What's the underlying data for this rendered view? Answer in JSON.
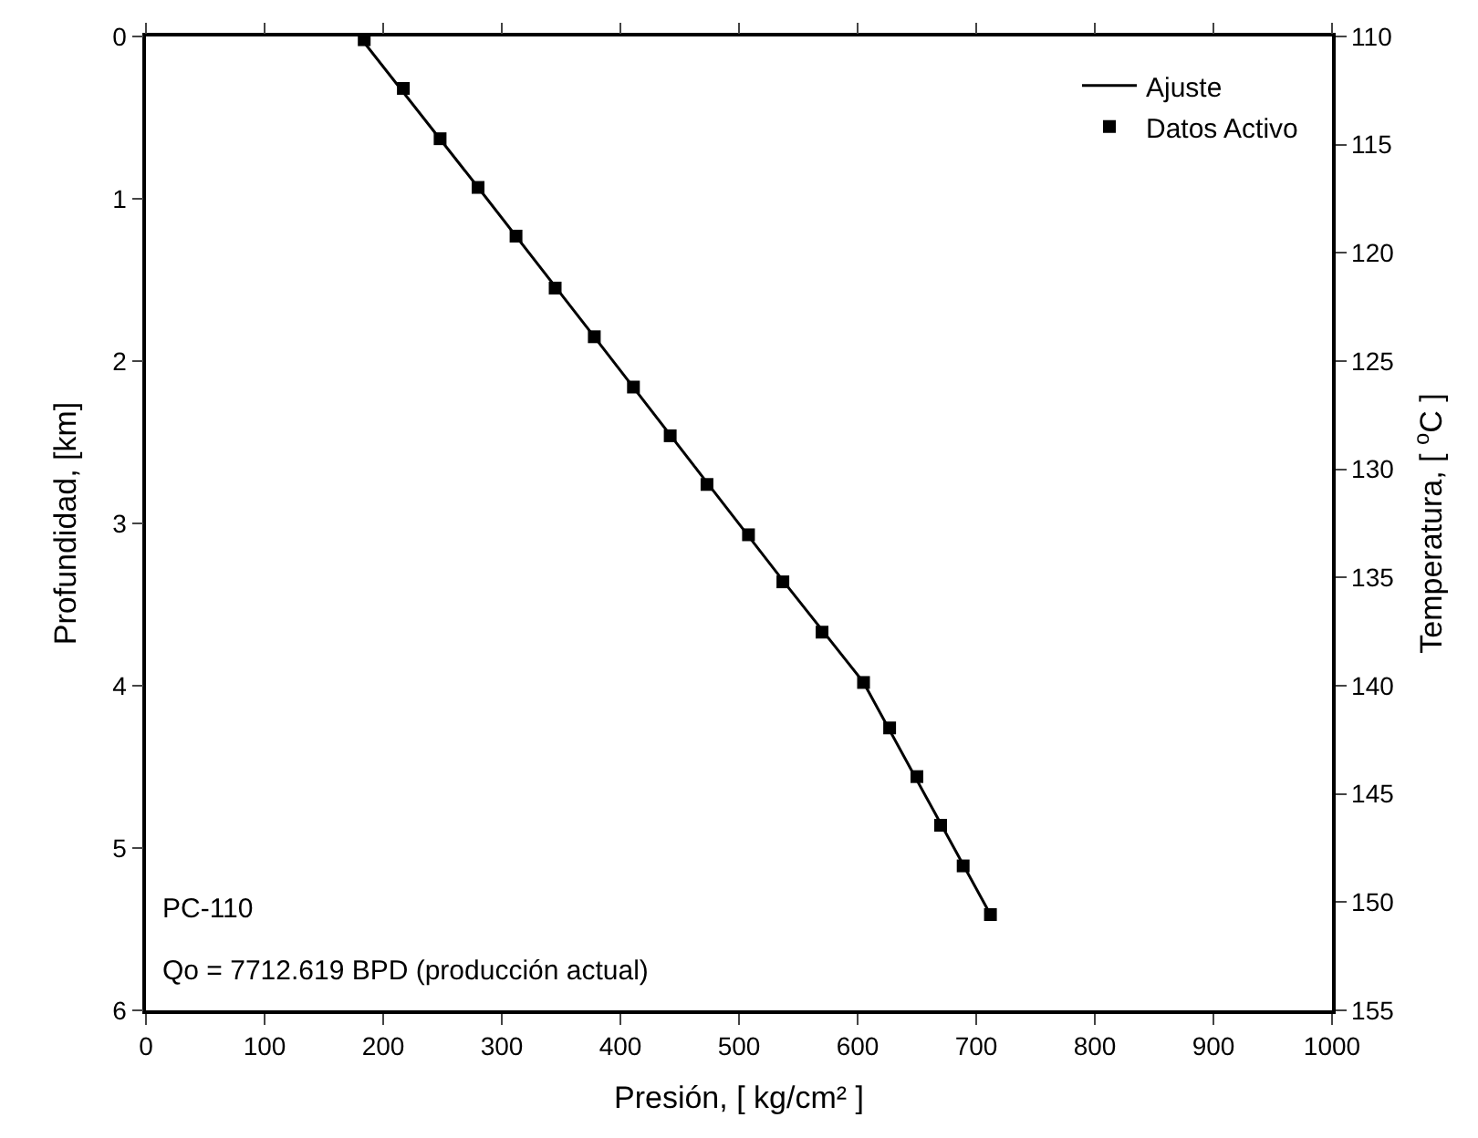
{
  "chart_data": {
    "type": "line",
    "xlabel": "Presión, [ kg/cm² ]",
    "ylabel": "Profundidad, [km]",
    "y2label": "Temperatura, [ $^{o}$C ]",
    "series": [
      {
        "name": "Ajuste",
        "color": "#000000",
        "marker": "none",
        "line_style": "solid",
        "x": [
          180,
          280,
          378,
          470,
          540,
          605,
          712
        ],
        "values": [
          0,
          0.93,
          1.85,
          2.72,
          3.38,
          3.98,
          5.41
        ]
      },
      {
        "name": "Datos Activo",
        "type": "scatter",
        "color": "#000000",
        "marker": "square",
        "x": [
          184,
          217,
          248,
          280,
          312,
          345,
          378,
          411,
          442,
          473,
          508,
          537,
          570,
          605,
          627,
          650,
          670,
          689,
          712
        ],
        "values": [
          0.02,
          0.32,
          0.63,
          0.93,
          1.23,
          1.55,
          1.85,
          2.16,
          2.46,
          2.76,
          3.07,
          3.36,
          3.67,
          3.98,
          4.26,
          4.56,
          4.86,
          5.11,
          5.41
        ]
      }
    ],
    "xlim": [
      0,
      1000
    ],
    "xticks": [
      0,
      100,
      200,
      300,
      400,
      500,
      600,
      700,
      800,
      900,
      1000
    ],
    "ylim": [
      6,
      0
    ],
    "yticks": [
      0,
      1,
      2,
      3,
      4,
      5,
      6
    ],
    "y2lim": [
      155,
      110
    ],
    "y2ticks": [
      110,
      115,
      120,
      125,
      130,
      135,
      140,
      145,
      150,
      155
    ],
    "legend": "top right",
    "annotations": [
      "PC-110",
      "Qo = 7712.619 BPD (producción actual)"
    ]
  }
}
